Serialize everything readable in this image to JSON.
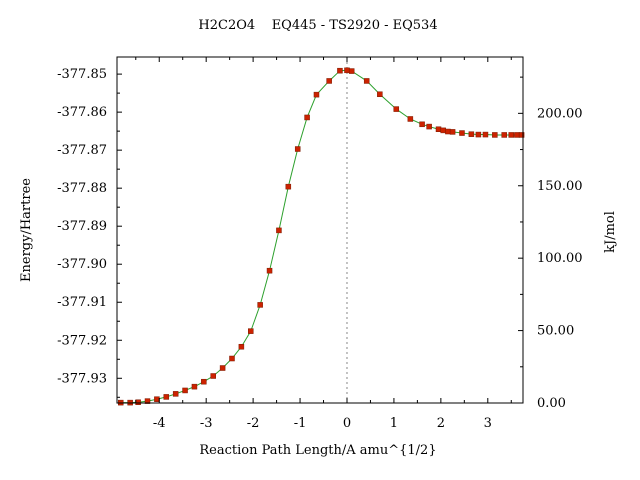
{
  "chart_data": {
    "type": "line",
    "title": "H2C2O4    EQ445 - TS2920 - EQ534",
    "xlabel": "Reaction Path Length/A amu^{1/2}",
    "ylabel_left": "Energy/Hartree",
    "ylabel_right": "kJ/mol",
    "xlim": [
      -4.9,
      3.75
    ],
    "ylim_left": [
      -377.9365,
      -377.8455
    ],
    "ylim_right": [
      0.0,
      238.9
    ],
    "x_ticks": [
      -4,
      -3,
      -2,
      -1,
      0,
      1,
      2,
      3
    ],
    "y_left_ticks": [
      "-377.85",
      "-377.86",
      "-377.87",
      "-377.88",
      "-377.89",
      "-377.90",
      "-377.91",
      "-377.92",
      "-377.93"
    ],
    "y_right_ticks": [
      "0.00",
      "50.00",
      "100.00",
      "150.00",
      "200.00"
    ],
    "ts_x": 0,
    "series": [
      {
        "line_color": "#2ca02c",
        "marker_color": "#cc2200",
        "points": [
          [
            -4.82,
            -377.9364
          ],
          [
            -4.62,
            -377.9364
          ],
          [
            -4.45,
            -377.9363
          ],
          [
            -4.25,
            -377.936
          ],
          [
            -4.05,
            -377.9355
          ],
          [
            -3.85,
            -377.9349
          ],
          [
            -3.65,
            -377.9341
          ],
          [
            -3.45,
            -377.9332
          ],
          [
            -3.25,
            -377.9322
          ],
          [
            -3.05,
            -377.9309
          ],
          [
            -2.85,
            -377.9294
          ],
          [
            -2.65,
            -377.9273
          ],
          [
            -2.45,
            -377.9248
          ],
          [
            -2.25,
            -377.9217
          ],
          [
            -2.05,
            -377.9176
          ],
          [
            -1.85,
            -377.9107
          ],
          [
            -1.65,
            -377.9017
          ],
          [
            -1.45,
            -377.8911
          ],
          [
            -1.25,
            -377.8796
          ],
          [
            -1.05,
            -377.8697
          ],
          [
            -0.85,
            -377.8614
          ],
          [
            -0.65,
            -377.8554
          ],
          [
            -0.38,
            -377.8518
          ],
          [
            -0.15,
            -377.8491
          ],
          [
            0.0,
            -377.849
          ],
          [
            0.1,
            -377.8492
          ],
          [
            0.42,
            -377.8518
          ],
          [
            0.7,
            -377.8553
          ],
          [
            1.05,
            -377.8592
          ],
          [
            1.35,
            -377.8618
          ],
          [
            1.6,
            -377.8632
          ],
          [
            1.75,
            -377.8638
          ],
          [
            1.95,
            -377.8645
          ],
          [
            2.05,
            -377.8648
          ],
          [
            2.15,
            -377.8651
          ],
          [
            2.25,
            -377.8652
          ],
          [
            2.45,
            -377.8655
          ],
          [
            2.65,
            -377.8658
          ],
          [
            2.8,
            -377.8659
          ],
          [
            2.95,
            -377.8659
          ],
          [
            3.15,
            -377.866
          ],
          [
            3.35,
            -377.866
          ],
          [
            3.5,
            -377.866
          ],
          [
            3.62,
            -377.866
          ],
          [
            3.72,
            -377.866
          ]
        ]
      }
    ]
  }
}
